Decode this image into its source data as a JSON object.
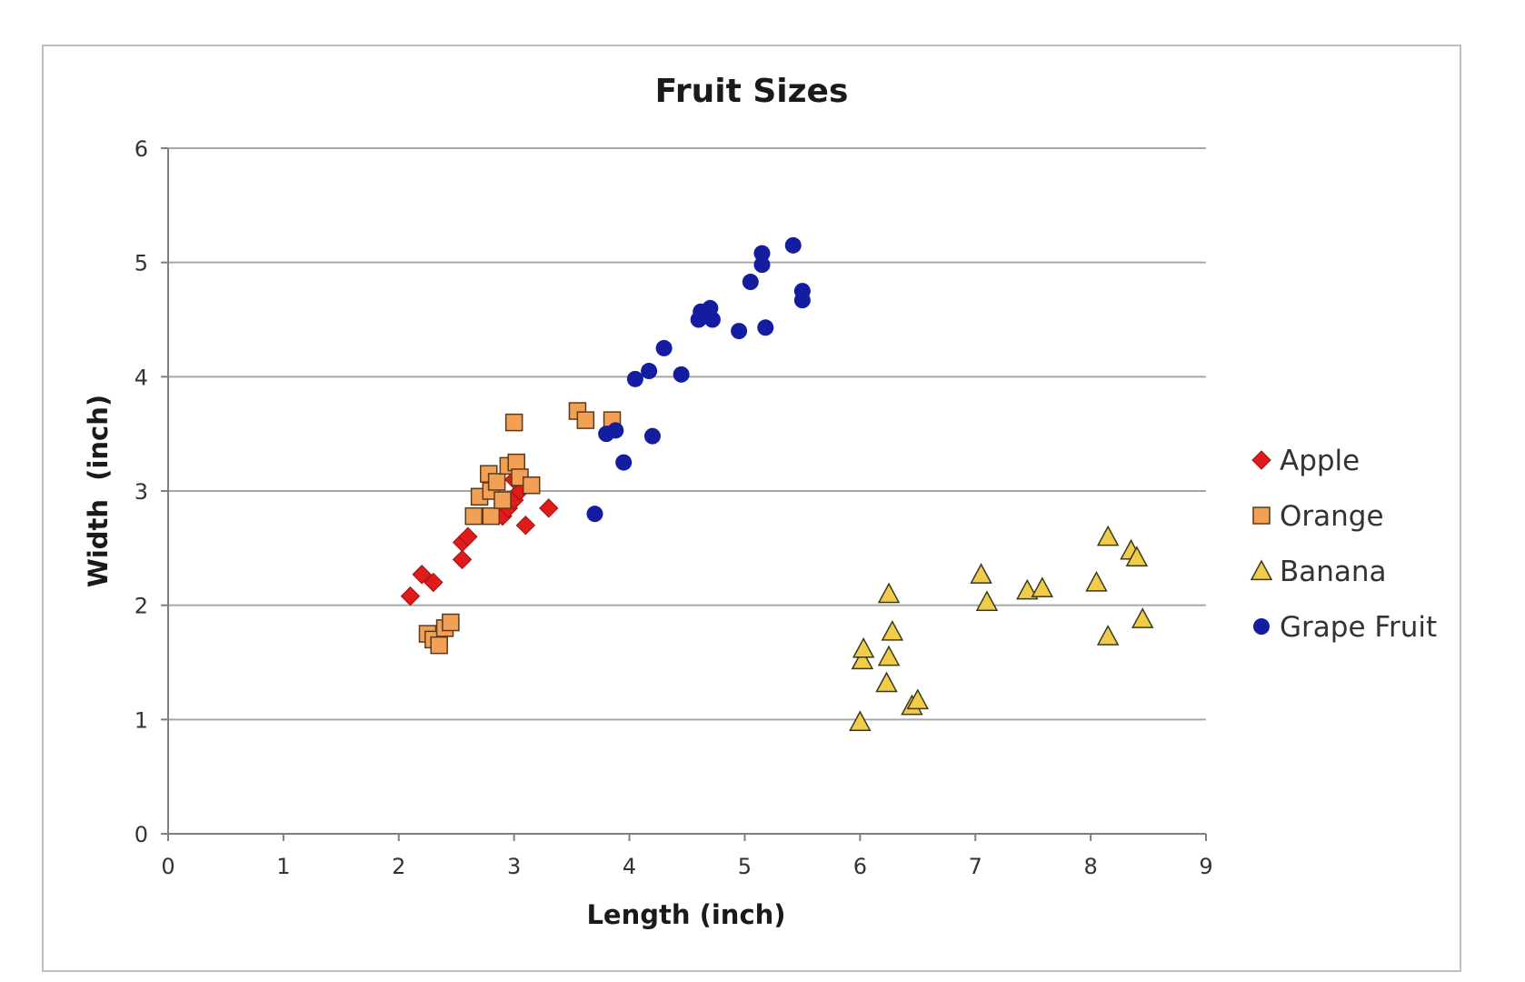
{
  "chart_data": {
    "type": "scatter",
    "title": "Fruit Sizes",
    "xlabel": "Length (inch)",
    "ylabel": "Width  (inch)",
    "xlim": [
      0,
      9
    ],
    "ylim": [
      0,
      6
    ],
    "xticks": [
      "0",
      "1",
      "2",
      "3",
      "4",
      "5",
      "6",
      "7",
      "8",
      "9"
    ],
    "yticks": [
      "0",
      "1",
      "2",
      "3",
      "4",
      "5",
      "6"
    ],
    "grid": "horizontal",
    "legend_position": "right",
    "series": [
      {
        "name": "Apple",
        "marker": "diamond",
        "color": "#e01b1b",
        "points": [
          [
            2.1,
            2.08
          ],
          [
            2.2,
            2.27
          ],
          [
            2.3,
            2.2
          ],
          [
            2.55,
            2.4
          ],
          [
            2.55,
            2.55
          ],
          [
            2.6,
            2.6
          ],
          [
            2.9,
            2.78
          ],
          [
            2.95,
            2.85
          ],
          [
            3.0,
            2.92
          ],
          [
            3.05,
            3.0
          ],
          [
            3.0,
            3.1
          ],
          [
            3.1,
            2.7
          ],
          [
            3.3,
            2.85
          ]
        ]
      },
      {
        "name": "Orange",
        "marker": "square",
        "color": "#f2a055",
        "points": [
          [
            2.25,
            1.75
          ],
          [
            2.3,
            1.7
          ],
          [
            2.35,
            1.65
          ],
          [
            2.4,
            1.8
          ],
          [
            2.45,
            1.85
          ],
          [
            2.65,
            2.78
          ],
          [
            2.7,
            2.95
          ],
          [
            2.78,
            3.15
          ],
          [
            2.8,
            3.0
          ],
          [
            2.8,
            2.78
          ],
          [
            2.85,
            3.08
          ],
          [
            2.9,
            2.92
          ],
          [
            2.95,
            3.22
          ],
          [
            3.0,
            3.6
          ],
          [
            3.02,
            3.25
          ],
          [
            3.05,
            3.12
          ],
          [
            3.15,
            3.05
          ],
          [
            3.55,
            3.7
          ],
          [
            3.62,
            3.62
          ],
          [
            3.85,
            3.62
          ]
        ]
      },
      {
        "name": "Banana",
        "marker": "triangle",
        "color": "#f0cc4a",
        "points": [
          [
            6.0,
            0.98
          ],
          [
            6.02,
            1.52
          ],
          [
            6.03,
            1.62
          ],
          [
            6.23,
            1.32
          ],
          [
            6.25,
            1.55
          ],
          [
            6.25,
            2.1
          ],
          [
            6.28,
            1.77
          ],
          [
            6.45,
            1.12
          ],
          [
            6.5,
            1.17
          ],
          [
            7.05,
            2.27
          ],
          [
            7.1,
            2.03
          ],
          [
            7.45,
            2.13
          ],
          [
            7.58,
            2.15
          ],
          [
            8.05,
            2.2
          ],
          [
            8.15,
            1.73
          ],
          [
            8.15,
            2.6
          ],
          [
            8.35,
            2.48
          ],
          [
            8.4,
            2.42
          ],
          [
            8.45,
            1.88
          ]
        ]
      },
      {
        "name": "Grape Fruit",
        "marker": "circle",
        "color": "#141ca0",
        "points": [
          [
            3.7,
            2.8
          ],
          [
            3.8,
            3.5
          ],
          [
            3.88,
            3.53
          ],
          [
            3.95,
            3.25
          ],
          [
            4.05,
            3.98
          ],
          [
            4.17,
            4.05
          ],
          [
            4.2,
            3.48
          ],
          [
            4.3,
            4.25
          ],
          [
            4.45,
            4.02
          ],
          [
            4.6,
            4.5
          ],
          [
            4.62,
            4.57
          ],
          [
            4.7,
            4.6
          ],
          [
            4.72,
            4.5
          ],
          [
            4.95,
            4.4
          ],
          [
            5.05,
            4.83
          ],
          [
            5.15,
            4.98
          ],
          [
            5.15,
            5.08
          ],
          [
            5.18,
            4.43
          ],
          [
            5.42,
            5.15
          ],
          [
            5.5,
            4.75
          ],
          [
            5.5,
            4.67
          ]
        ]
      }
    ]
  }
}
